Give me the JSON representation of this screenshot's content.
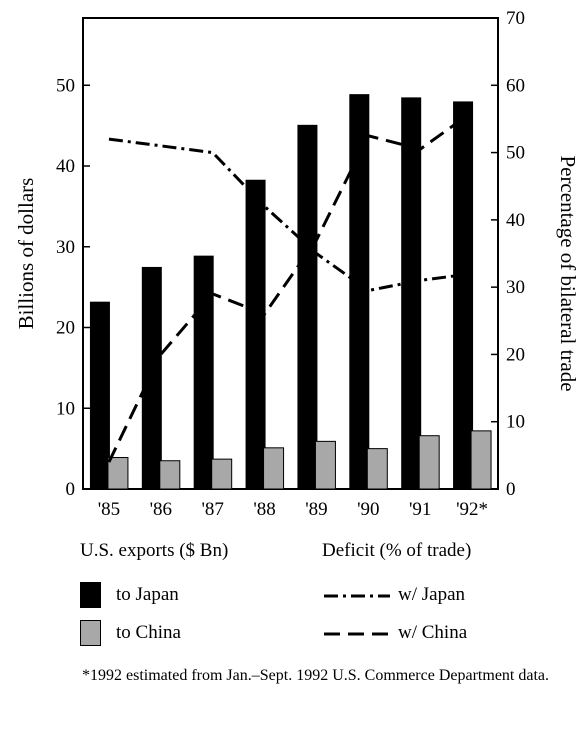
{
  "chart_data": {
    "type": "bar",
    "categories": [
      "'85",
      "'86",
      "'87",
      "'88",
      "'89",
      "'90",
      "'91",
      "'92*"
    ],
    "ylabel": "Billions of dollars",
    "ylabel_right": "Percentage of bilateral trade",
    "ylim": [
      0,
      58.33
    ],
    "ylim_right": [
      0,
      70
    ],
    "yticks": [
      0,
      10,
      20,
      30,
      40,
      50
    ],
    "yticks_right": [
      0,
      10,
      20,
      30,
      40,
      50,
      60,
      70
    ],
    "series": [
      {
        "name": "to Japan",
        "axis": "left",
        "kind": "bar",
        "color": "#000000",
        "values": [
          23.2,
          27.5,
          28.9,
          38.3,
          45.1,
          48.9,
          48.5,
          48.0
        ]
      },
      {
        "name": "to China",
        "axis": "left",
        "kind": "bar",
        "color": "#a8a8a8",
        "values": [
          3.9,
          3.5,
          3.7,
          5.1,
          5.9,
          5.0,
          6.6,
          7.2
        ]
      },
      {
        "name": "w/ Japan",
        "axis": "right",
        "kind": "line",
        "style": "dash-dot",
        "values": [
          52,
          51,
          50,
          42,
          35,
          29.5,
          31,
          32
        ]
      },
      {
        "name": "w/ China",
        "axis": "right",
        "kind": "line",
        "style": "dashed",
        "values": [
          4,
          20,
          29,
          26,
          37,
          52.5,
          50.5,
          56
        ]
      }
    ],
    "legend": {
      "exports_header": "U.S. exports ($ Bn)",
      "deficit_header": "Deficit (% of trade)"
    },
    "footnote": "*1992 estimated from Jan.–Sept. 1992 U.S. Commerce Department data."
  }
}
